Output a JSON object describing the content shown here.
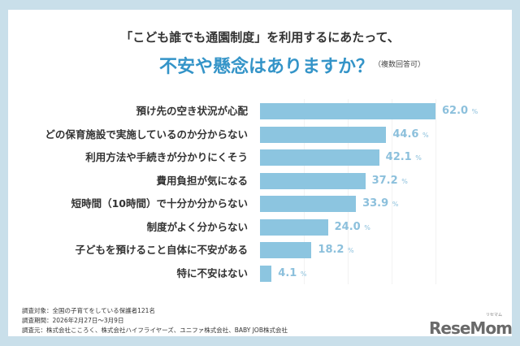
{
  "chart_data": {
    "type": "bar",
    "orientation": "horizontal",
    "title": "「こども誰でも通園制度」を利用するにあたって、",
    "subtitle": "不安や懸念はありますか？",
    "note": "（複数回答可）",
    "categories": [
      "預け先の空き状況が心配",
      "どの保育施設で実施しているのか分からない",
      "利用方法や手続きが分かりにくそう",
      "費用負担が気になる",
      "短時間（10時間）で十分か分からない",
      "制度がよく分からない",
      "子どもを預けること自体に不安がある",
      "特に不安はない"
    ],
    "values": [
      62.0,
      44.6,
      42.1,
      37.2,
      33.9,
      24.0,
      18.2,
      4.1
    ],
    "value_labels": [
      "62.0",
      "44.6",
      "42.1",
      "37.2",
      "33.9",
      "24.0",
      "18.2",
      "4.1"
    ],
    "unit": "%",
    "xlim": [
      0,
      62
    ],
    "bar_color": "#8cc5e0",
    "value_color": "#8cc0dc",
    "title_accent_color": "#3494c8",
    "frame_color": "#c9dfea"
  },
  "footer": {
    "target": "調査対象：全国の子育てをしている保護者121名",
    "period": "調査期間：2026年2月27日～3月9日",
    "source": "調査元：株式会社こころく、株式会社ハイフライヤーズ、ユニファ株式会社、BABY JOB株式会社"
  },
  "logo": {
    "text": "ReseMom",
    "ruby": "リセマム"
  }
}
